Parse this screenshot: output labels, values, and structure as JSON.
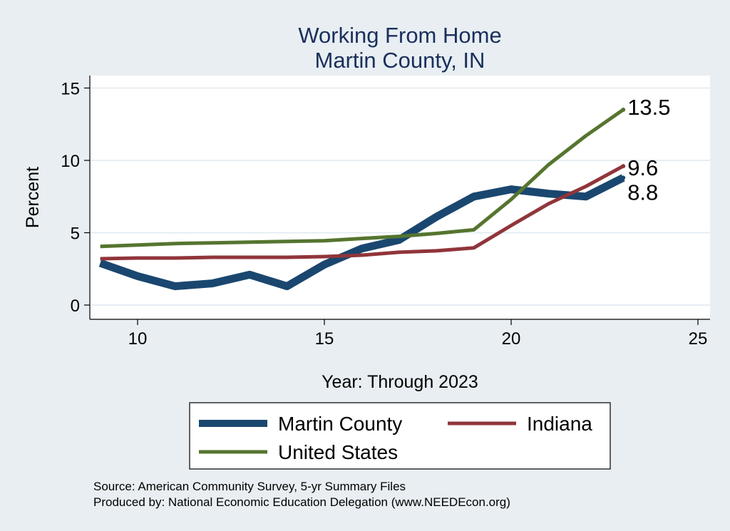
{
  "chart_data": {
    "type": "line",
    "title": [
      "Working From Home",
      "Martin County, IN"
    ],
    "xlabel": "Year: Through 2023",
    "ylabel": "Percent",
    "xlim": [
      9,
      25
    ],
    "ylim": [
      0,
      15
    ],
    "xticks": [
      10,
      15,
      20,
      25
    ],
    "yticks": [
      0,
      5,
      10,
      15
    ],
    "grid": true,
    "legend_position": "bottom",
    "x": [
      9,
      10,
      11,
      12,
      13,
      14,
      15,
      16,
      17,
      18,
      19,
      20,
      21,
      22,
      23
    ],
    "series": [
      {
        "name": "Martin County",
        "color": "#1a476f",
        "values": [
          2.9,
          2.0,
          1.3,
          1.5,
          2.1,
          1.3,
          2.8,
          3.9,
          4.5,
          6.1,
          7.5,
          8.0,
          7.7,
          7.5,
          8.8
        ],
        "end_label": "8.8"
      },
      {
        "name": "Indiana",
        "color": "#90353b",
        "values": [
          3.2,
          3.25,
          3.25,
          3.3,
          3.3,
          3.3,
          3.35,
          3.45,
          3.65,
          3.75,
          3.95,
          5.5,
          7.0,
          8.2,
          9.6
        ],
        "end_label": "9.6"
      },
      {
        "name": "United States",
        "color": "#55752f",
        "values": [
          4.05,
          4.15,
          4.25,
          4.3,
          4.35,
          4.4,
          4.45,
          4.6,
          4.75,
          4.95,
          5.2,
          7.3,
          9.7,
          11.7,
          13.5
        ],
        "end_label": "13.5"
      }
    ]
  },
  "notes": {
    "source": "Source: American Community Survey, 5-yr Summary Files",
    "produced": "Produced by: National Economic Education Delegation (www.NEEDEcon.org)"
  }
}
